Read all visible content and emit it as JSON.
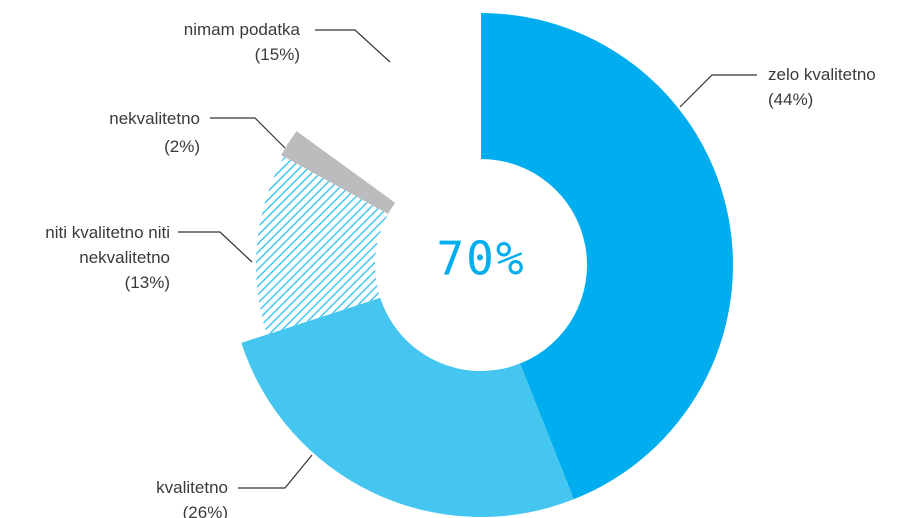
{
  "chart_data": {
    "type": "donut",
    "center_label": "70%",
    "categories": [
      "zelo kvalitetno",
      "kvalitetno",
      "niti kvalitetno niti nekvalitetno",
      "nekvalitetno",
      "nimam podatka"
    ],
    "values": [
      44,
      26,
      13,
      2,
      15
    ],
    "value_labels": [
      "(44%)",
      "(26%)",
      "(13%)",
      "(2%)",
      "(15%)"
    ],
    "colors": [
      "#00aeef",
      "#45c6f0",
      "#45c6f0",
      "#bbbcbe",
      "#ffffff"
    ],
    "patterns": [
      "solid",
      "solid",
      "hatch",
      "solid",
      "solid"
    ]
  }
}
